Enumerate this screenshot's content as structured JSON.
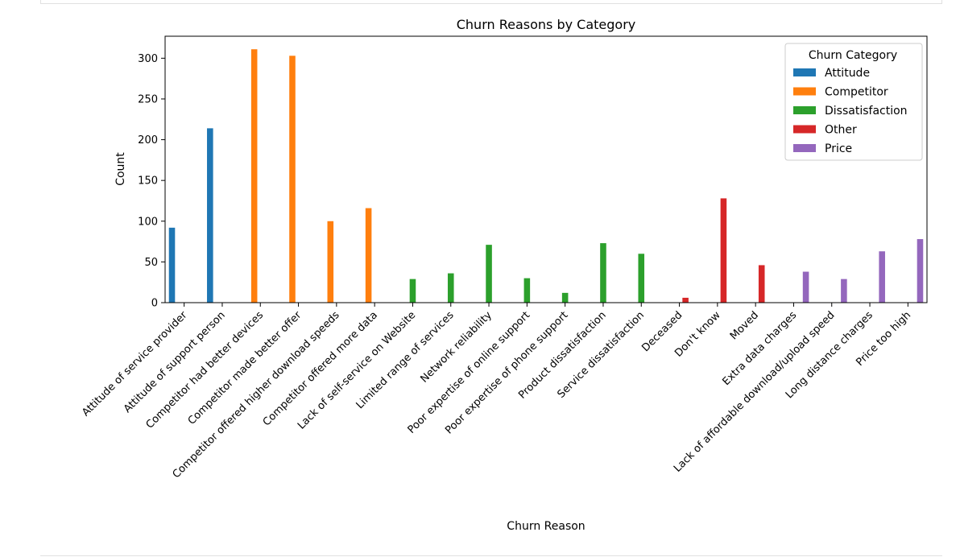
{
  "chart_data": {
    "type": "bar",
    "title": "Churn Reasons by Category",
    "xlabel": "Churn Reason",
    "ylabel": "Count",
    "ylim": [
      0,
      327
    ],
    "yticks": [
      0,
      50,
      100,
      150,
      200,
      250,
      300
    ],
    "grid": false,
    "legend": {
      "title": "Churn Category",
      "placement": "top-right"
    },
    "categories": [
      "Attitude of service provider",
      "Attitude of support person",
      "Competitor had better devices",
      "Competitor made better offer",
      "Competitor offered higher download speeds",
      "Competitor offered more data",
      "Lack of self-service on Website",
      "Limited range of services",
      "Network reliability",
      "Poor expertise of online support",
      "Poor expertise of phone support",
      "Product dissatisfaction",
      "Service dissatisfaction",
      "Deceased",
      "Don't know",
      "Moved",
      "Extra data charges",
      "Lack of affordable download/upload speed",
      "Long distance charges",
      "Price too high"
    ],
    "series": [
      {
        "name": "Attitude",
        "color": "#1f77b4",
        "values": [
          92,
          214,
          null,
          null,
          null,
          null,
          null,
          null,
          null,
          null,
          null,
          null,
          null,
          null,
          null,
          null,
          null,
          null,
          null,
          null
        ]
      },
      {
        "name": "Competitor",
        "color": "#ff7f0e",
        "values": [
          null,
          null,
          311,
          303,
          100,
          116,
          null,
          null,
          null,
          null,
          null,
          null,
          null,
          null,
          null,
          null,
          null,
          null,
          null,
          null
        ]
      },
      {
        "name": "Dissatisfaction",
        "color": "#2ca02c",
        "values": [
          null,
          null,
          null,
          null,
          null,
          null,
          29,
          36,
          71,
          30,
          12,
          73,
          60,
          null,
          null,
          null,
          null,
          null,
          null,
          null
        ]
      },
      {
        "name": "Other",
        "color": "#d62728",
        "values": [
          null,
          null,
          null,
          null,
          null,
          null,
          null,
          null,
          null,
          null,
          null,
          null,
          null,
          6,
          128,
          46,
          null,
          null,
          null,
          null
        ]
      },
      {
        "name": "Price",
        "color": "#9467bd",
        "values": [
          null,
          null,
          null,
          null,
          null,
          null,
          null,
          null,
          null,
          null,
          null,
          null,
          null,
          null,
          null,
          null,
          38,
          29,
          63,
          78
        ]
      }
    ]
  }
}
